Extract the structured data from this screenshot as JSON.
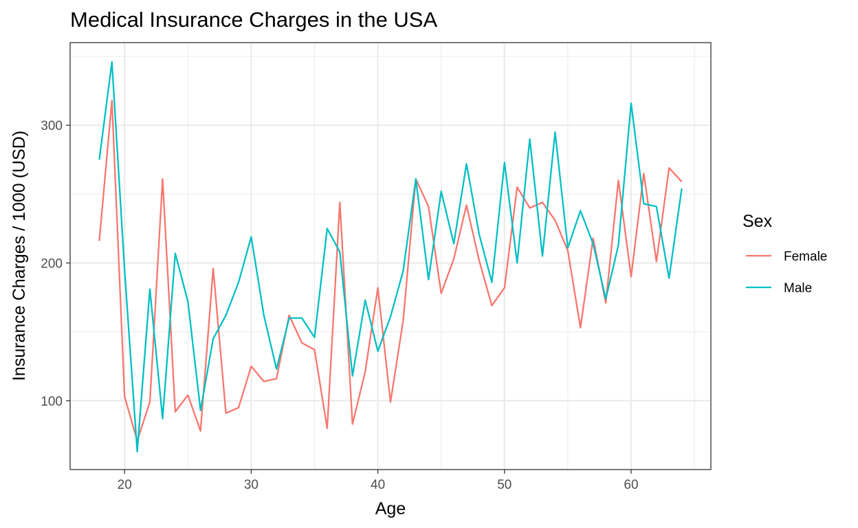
{
  "chart_data": {
    "type": "line",
    "title": "Medical Insurance Charges in the USA",
    "xlabel": "Age",
    "ylabel": "Insurance Charges / 1000 (USD)",
    "xlim": [
      15.7,
      66.3
    ],
    "ylim": [
      50,
      360
    ],
    "x_ticks": [
      20,
      30,
      40,
      50,
      60
    ],
    "x_tick_labels": [
      "20",
      "30",
      "40",
      "50",
      "60"
    ],
    "y_ticks": [
      100,
      200,
      300
    ],
    "y_tick_labels": [
      "100",
      "200",
      "300"
    ],
    "grid": true,
    "legend": {
      "title": "Sex",
      "position": "right"
    },
    "x": [
      18,
      19,
      20,
      21,
      22,
      23,
      24,
      25,
      26,
      27,
      28,
      29,
      30,
      31,
      32,
      33,
      34,
      35,
      36,
      37,
      38,
      39,
      40,
      41,
      42,
      43,
      44,
      45,
      46,
      47,
      48,
      49,
      50,
      51,
      52,
      53,
      54,
      55,
      56,
      57,
      58,
      59,
      60,
      61,
      62,
      63,
      64
    ],
    "series": [
      {
        "name": "Female",
        "color": "#F8766D",
        "values": [
          216,
          318,
          103,
          71,
          99,
          261,
          92,
          104,
          78,
          196,
          91,
          95,
          125,
          114,
          116,
          162,
          142,
          137,
          80,
          244,
          83,
          121,
          182,
          99,
          158,
          261,
          241,
          178,
          203,
          242,
          202,
          169,
          182,
          255,
          240,
          244,
          231,
          209,
          153,
          218,
          171,
          260,
          190,
          265,
          201,
          269,
          259
        ]
      },
      {
        "name": "Male",
        "color": "#00BFC4",
        "values": [
          275,
          346,
          195,
          63,
          181,
          87,
          207,
          172,
          93,
          145,
          162,
          186,
          219,
          162,
          123,
          160,
          160,
          146,
          225,
          208,
          118,
          173,
          136,
          161,
          194,
          261,
          188,
          252,
          214,
          272,
          221,
          186,
          273,
          200,
          290,
          205,
          295,
          211,
          238,
          214,
          174,
          213,
          316,
          243,
          241,
          189,
          254
        ]
      }
    ]
  }
}
